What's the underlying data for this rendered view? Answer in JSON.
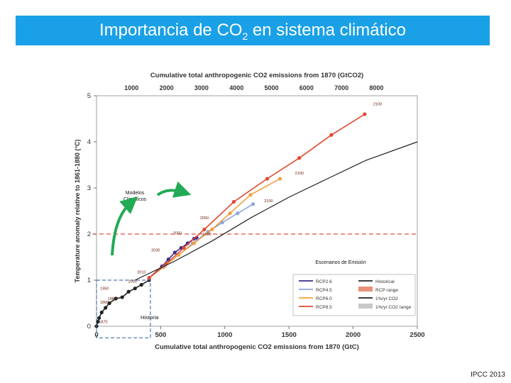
{
  "slide": {
    "title_prefix": "Importancia de CO",
    "title_sub": "2",
    "title_suffix": " en sistema climático",
    "source": "IPCC 2013"
  },
  "colors": {
    "title_bg": "#1aa0e6",
    "rcp26": "#3b2a8c",
    "rcp45": "#8fa6de",
    "rcp60": "#f0a040",
    "rcp85": "#e04a30",
    "rcp_range": "#e8917a",
    "historical": "#222222",
    "one_pct": "#222222",
    "one_pct_range": "#c8c8c8",
    "threshold": "#e05040",
    "arrow": "#22aa55"
  },
  "annotations": {
    "modelos": "Modelos Climáticos",
    "escenarios": "Escenarios de Emisión",
    "historia": "Historia"
  },
  "chart_data": {
    "type": "line",
    "title": "Cumulative total anthropogenic CO2 emissions from 1870 (GtCO2)",
    "top_axis_ticks": [
      1000,
      2000,
      3000,
      4000,
      5000,
      6000,
      7000,
      8000
    ],
    "xlabel": "Cumulative total anthropogenic CO2 emissions from 1870 (GtC)",
    "ylabel": "Temperature anomaly relative to 1861-1880 (°C)",
    "xlim": [
      0,
      2500
    ],
    "ylim": [
      0,
      5
    ],
    "x_ticks": [
      0,
      500,
      1000,
      1500,
      2000,
      2500
    ],
    "y_ticks": [
      0,
      1,
      2,
      3,
      4,
      5
    ],
    "threshold_y": 2,
    "year_labels": [
      {
        "text": "1870",
        "x": 2,
        "y": 0.02
      },
      {
        "text": "1890",
        "x": 10,
        "y": 0.45
      },
      {
        "text": "1950",
        "x": 12,
        "y": 0.75
      },
      {
        "text": "1980",
        "x": 70,
        "y": 0.52
      },
      {
        "text": "2000",
        "x": 230,
        "y": 0.9
      },
      {
        "text": "2010",
        "x": 300,
        "y": 1.1
      },
      {
        "text": "2030",
        "x": 410,
        "y": 1.58
      },
      {
        "text": "2050",
        "x": 580,
        "y": 1.95
      },
      {
        "text": "2100",
        "x": 810,
        "y": 1.92
      },
      {
        "text": "2050",
        "x": 790,
        "y": 2.28
      },
      {
        "text": "2100",
        "x": 1530,
        "y": 3.25
      },
      {
        "text": "2100",
        "x": 1290,
        "y": 2.65
      },
      {
        "text": "2100",
        "x": 2140,
        "y": 4.75
      }
    ],
    "series": [
      {
        "name": "Historical",
        "x": [
          0,
          10,
          20,
          40,
          70,
          100,
          150,
          200,
          250,
          300,
          350,
          410
        ],
        "y": [
          0.0,
          0.1,
          0.18,
          0.3,
          0.4,
          0.5,
          0.6,
          0.63,
          0.75,
          0.82,
          0.9,
          1.0
        ]
      },
      {
        "name": "RCP2.6",
        "x": [
          410,
          510,
          560,
          610,
          660,
          710,
          760,
          780
        ],
        "y": [
          1.05,
          1.3,
          1.45,
          1.6,
          1.7,
          1.8,
          1.9,
          1.92
        ]
      },
      {
        "name": "RCP4.5",
        "x": [
          410,
          530,
          640,
          750,
          870,
          980,
          1100,
          1220
        ],
        "y": [
          1.05,
          1.3,
          1.55,
          1.8,
          2.05,
          2.25,
          2.45,
          2.65
        ]
      },
      {
        "name": "RCP6.0",
        "x": [
          410,
          520,
          640,
          760,
          900,
          1040,
          1200,
          1430
        ],
        "y": [
          1.05,
          1.28,
          1.55,
          1.8,
          2.1,
          2.45,
          2.85,
          3.2
        ]
      },
      {
        "name": "RCP8.5",
        "x": [
          410,
          540,
          680,
          840,
          1070,
          1330,
          1580,
          1830,
          2090
        ],
        "y": [
          1.05,
          1.35,
          1.7,
          2.1,
          2.7,
          3.2,
          3.65,
          4.15,
          4.6
        ]
      },
      {
        "name": "1%/yr CO2",
        "x": [
          300,
          600,
          900,
          1200,
          1500,
          1800,
          2100,
          2500
        ],
        "y": [
          1.0,
          1.4,
          1.85,
          2.35,
          2.8,
          3.2,
          3.6,
          4.0
        ]
      }
    ],
    "legend": {
      "placement": "bottom-right",
      "entries": [
        "RCP2.6",
        "Historical",
        "RCP4.5",
        "RCP range",
        "RCP6.0",
        "1%/yr CO2",
        "RCP8.5",
        "1%/yr CO2 range"
      ]
    }
  }
}
